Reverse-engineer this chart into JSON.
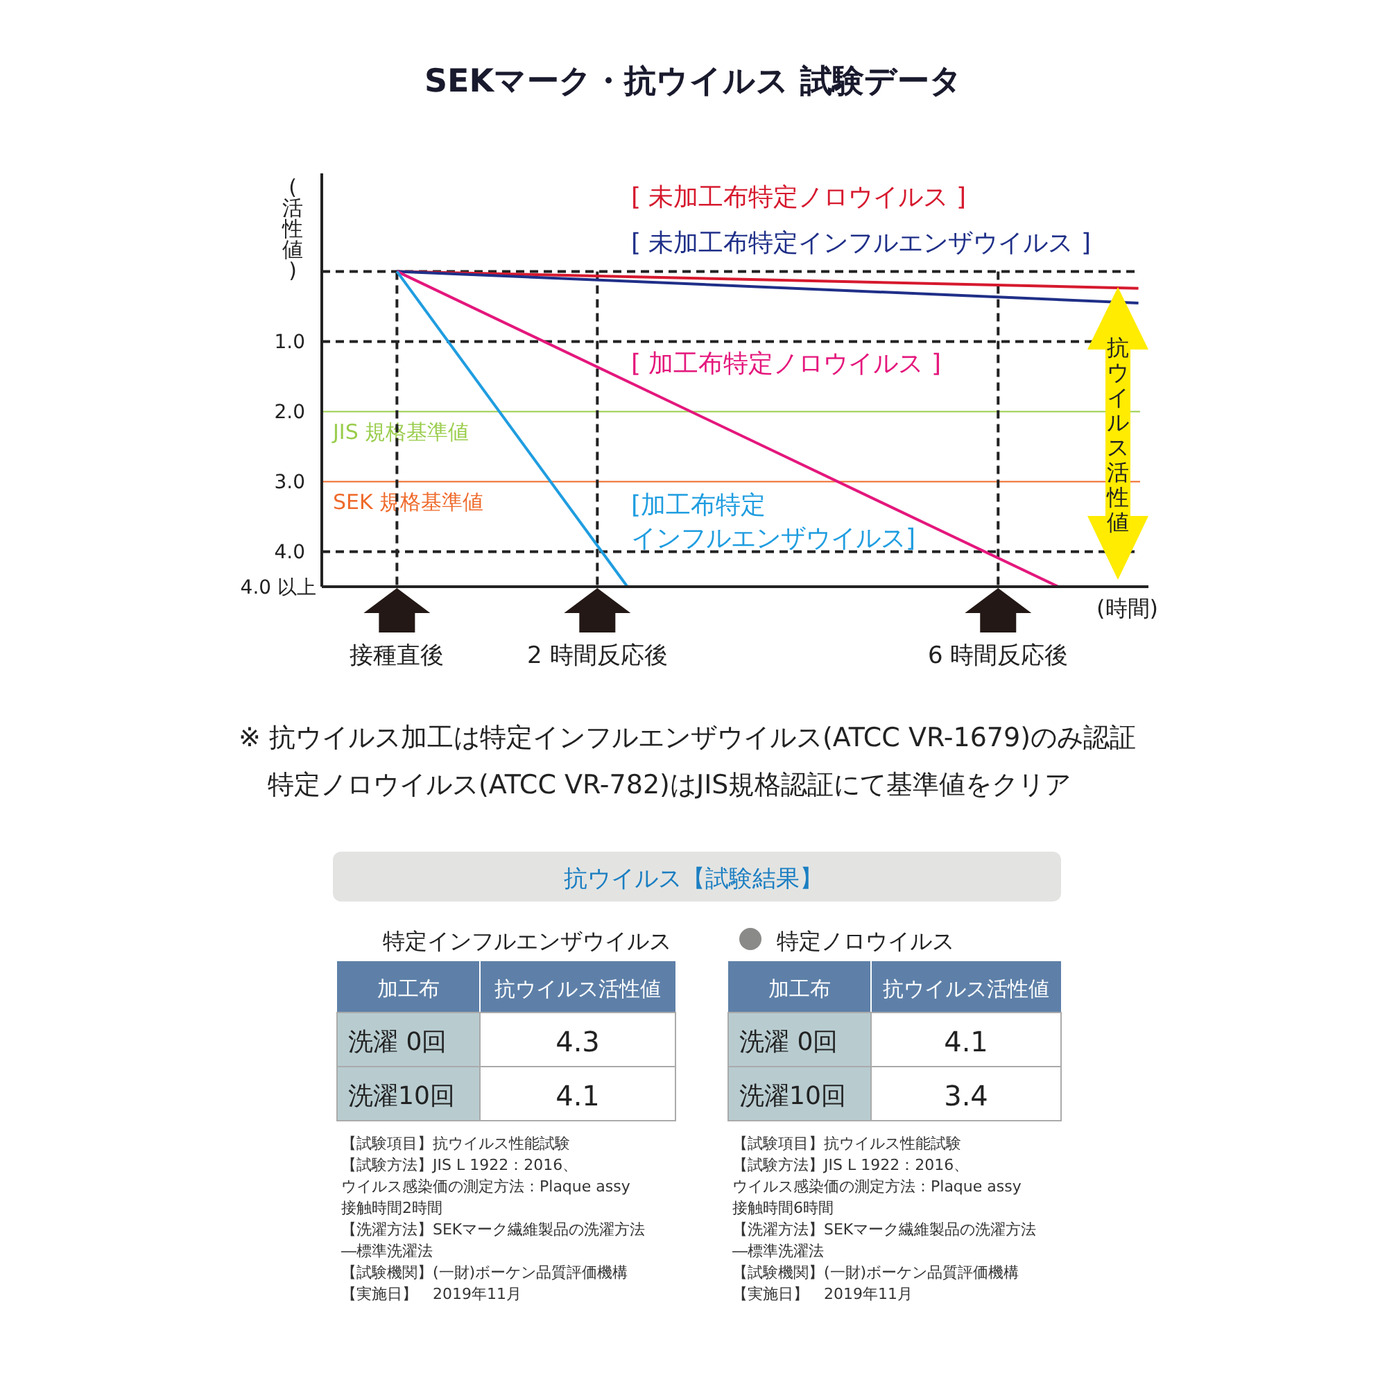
{
  "chart_data": [
    {
      "type": "line",
      "title": "SEKマーク・抗ウイルス 試験データ",
      "xlabel": "(時間)",
      "ylabel": "(活性値)",
      "xlim": [
        -0.75,
        7.5
      ],
      "ylim": [
        4.5,
        -1.4
      ],
      "xticks": [
        {
          "value": 0,
          "label": "接種直後"
        },
        {
          "value": 2,
          "label": "2 時間反応後"
        },
        {
          "value": 6,
          "label": "6 時間反応後"
        }
      ],
      "yticks": [
        {
          "value": 0,
          "label": null
        },
        {
          "value": 1,
          "label": "1.0"
        },
        {
          "value": 2,
          "label": "2.0"
        },
        {
          "value": 3,
          "label": "3.0"
        },
        {
          "value": 4,
          "label": "4.0"
        }
      ],
      "series": [
        {
          "name": "[ 未加工布特定ノロウイルス ]",
          "color": "#d6192e",
          "x": [
            0,
            7.4
          ],
          "values": [
            0,
            0.24
          ]
        },
        {
          "name": "[ 未加工布特定インフルエンザウイルス ]",
          "color": "#1f2f88",
          "x": [
            0,
            7.4
          ],
          "values": [
            0,
            0.45
          ]
        },
        {
          "name": "[ 加工布特定ノロウイルス ]",
          "color": "#e4177c",
          "x": [
            0,
            6.6
          ],
          "values": [
            0,
            4.5
          ]
        },
        {
          "name": "[加工布特定インフルエンザウイルス]",
          "color": "#1f9de0",
          "x": [
            0,
            2.3
          ],
          "values": [
            0,
            4.5
          ]
        }
      ],
      "ref_lines": [
        {
          "axis": "y",
          "value": 0,
          "color": "#222222",
          "line_style": "dashed"
        },
        {
          "axis": "y",
          "value": 1,
          "color": "#222222",
          "line_style": "dashed"
        },
        {
          "axis": "y",
          "value": 4,
          "color": "#222222",
          "line_style": "dashed"
        },
        {
          "axis": "y",
          "value": 2,
          "label": "JIS 規格基準値",
          "color": "#9acd4c",
          "line_style": "solid"
        },
        {
          "axis": "y",
          "value": 3,
          "label": "SEK 規格基準値",
          "color": "#ef6a2b",
          "line_style": "solid"
        },
        {
          "axis": "x",
          "value": 0,
          "color": "#222222",
          "line_style": "dashed"
        },
        {
          "axis": "x",
          "value": 2,
          "color": "#222222",
          "line_style": "dashed"
        },
        {
          "axis": "x",
          "value": 6,
          "color": "#222222",
          "line_style": "dashed"
        }
      ],
      "annotations": [
        "抗ウイルス活性値",
        "4.0 以上",
        "※ 抗ウイルス加工は特定インフルエンザウイルス(ATCC VR-1679)のみ認証",
        "特定ノロウイルス(ATCC VR-782)はJIS規格認証にて基準値をクリア"
      ]
    },
    {
      "type": "other",
      "title": "抗ウイルス【試験結果】",
      "subtitle": "特定インフルエンザウイルス",
      "xlabel": "加工布",
      "ylabel": "抗ウイルス活性値",
      "categories": [
        "洗濯 0回",
        "洗濯10回"
      ],
      "values": [
        4.3,
        4.1
      ],
      "data_labels": true,
      "annotations": [
        "【試験項目】抗ウイルス性能試験",
        "【試験方法】JIS L 1922：2016、",
        "ウイルス感染価の測定方法：Plaque assy",
        "接触時間2時間",
        "【洗濯方法】SEKマーク繊維製品の洗濯方法",
        "―標準洗濯法",
        "【試験機関】(一財)ボーケン品質評価機構",
        "【実施日】　2019年11月"
      ]
    },
    {
      "type": "other",
      "subtitle": "特定ノロウイルス",
      "xlabel": "加工布",
      "ylabel": "抗ウイルス活性値",
      "categories": [
        "洗濯 0回",
        "洗濯10回"
      ],
      "values": [
        4.1,
        3.4
      ],
      "data_labels": true,
      "annotations": [
        "【試験項目】抗ウイルス性能試験",
        "【試験方法】JIS L 1922：2016、",
        "ウイルス感染価の測定方法：Plaque assy",
        "接触時間6時間",
        "【洗濯方法】SEKマーク繊維製品の洗濯方法",
        "―標準洗濯法",
        "【試験機関】(一財)ボーケン品質評価機構",
        "【実施日】　2019年11月"
      ]
    }
  ]
}
